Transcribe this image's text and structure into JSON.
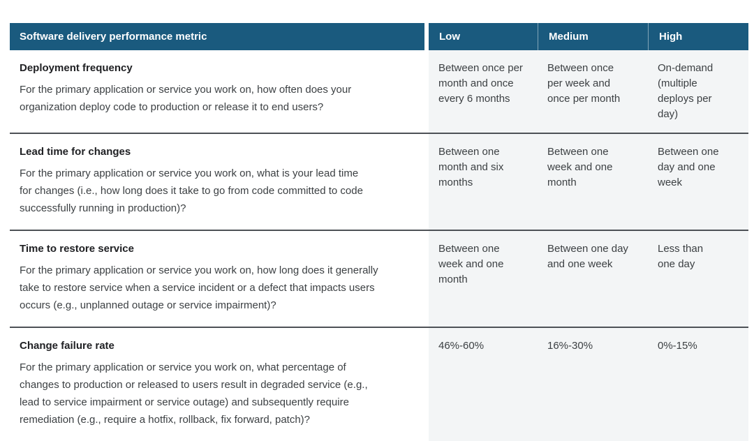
{
  "colors": {
    "header_bg": "#1a5a7e",
    "value_bg": "#f3f5f6",
    "divider": "#4d5156",
    "title_color": "#202124",
    "text_color": "#3c4043",
    "header_text": "#ffffff"
  },
  "table": {
    "header": {
      "metric": "Software delivery performance metric",
      "low": "Low",
      "medium": "Medium",
      "high": "High"
    },
    "rows": [
      {
        "title": "Deployment frequency",
        "description": "For the primary application or service you work on, how often does your\norganization deploy code to production or release it to end users?",
        "low": "Between once per\nmonth and once\nevery 6 months",
        "medium": "Between once\nper week and\nonce per month",
        "high": "On-demand\n(multiple\ndeploys per\nday)"
      },
      {
        "title": "Lead time for changes",
        "description": "For the primary application or service you work on, what is your lead time\nfor changes (i.e., how long does it take to go from code committed to code\nsuccessfully running in production)?",
        "low": "Between one\nmonth and six\nmonths",
        "medium": "Between one\nweek and one\nmonth",
        "high": "Between one\nday and one\nweek"
      },
      {
        "title": "Time to restore service",
        "description": "For the primary application or service you work on, how long does it generally\ntake to restore service when a service incident or a defect that impacts users\noccurs (e.g., unplanned outage or service impairment)?",
        "low": "Between one\nweek and one\nmonth",
        "medium": "Between one day\nand one week",
        "high": "Less than\none day"
      },
      {
        "title": "Change failure rate",
        "description": "For the primary application or service you work on, what percentage of\nchanges to production or released to users result in degraded service (e.g.,\nlead to service impairment or service outage) and subsequently require\nremediation (e.g., require a hotfix, rollback, fix forward, patch)?",
        "low": "46%-60%",
        "medium": "16%-30%",
        "high": "0%-15%"
      }
    ]
  }
}
